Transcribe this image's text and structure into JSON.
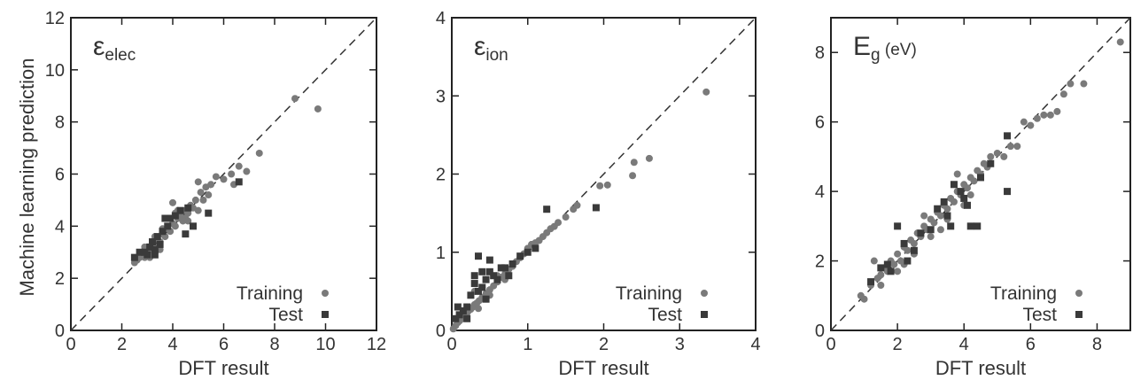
{
  "figure": {
    "ylabel": "Machine learning prediction",
    "colors": {
      "training": "#7a7a7a",
      "test": "#3a3a3a",
      "axis": "#222222"
    }
  },
  "chart_data": [
    {
      "type": "scatter",
      "title_main": "ε",
      "title_sub": "elec",
      "title_unit": "",
      "xlabel": "DFT result",
      "ylabel": "Machine learning prediction",
      "xlim": [
        0,
        12
      ],
      "ylim": [
        0,
        12
      ],
      "xticks": [
        0,
        2,
        4,
        6,
        8,
        10,
        12
      ],
      "yticks": [
        0,
        2,
        4,
        6,
        8,
        10,
        12
      ],
      "legend": {
        "position": "bottom-right",
        "entries": [
          "Training",
          "Test"
        ]
      },
      "series": [
        {
          "name": "Training",
          "marker": "circle",
          "points": [
            [
              2.5,
              2.6
            ],
            [
              2.6,
              2.7
            ],
            [
              2.7,
              2.8
            ],
            [
              2.8,
              2.9
            ],
            [
              2.9,
              2.8
            ],
            [
              3.0,
              3.1
            ],
            [
              3.1,
              3.0
            ],
            [
              3.2,
              3.3
            ],
            [
              3.3,
              3.2
            ],
            [
              3.4,
              3.5
            ],
            [
              3.5,
              3.4
            ],
            [
              3.6,
              3.7
            ],
            [
              3.7,
              3.6
            ],
            [
              3.8,
              3.9
            ],
            [
              3.9,
              3.8
            ],
            [
              4.0,
              4.1
            ],
            [
              4.1,
              4.0
            ],
            [
              4.2,
              4.3
            ],
            [
              4.3,
              4.4
            ],
            [
              4.4,
              4.2
            ],
            [
              4.5,
              4.6
            ],
            [
              4.6,
              4.5
            ],
            [
              4.7,
              4.8
            ],
            [
              4.8,
              4.7
            ],
            [
              4.9,
              5.0
            ],
            [
              5.0,
              4.6
            ],
            [
              5.1,
              5.3
            ],
            [
              5.2,
              5.0
            ],
            [
              5.3,
              5.5
            ],
            [
              5.4,
              5.2
            ],
            [
              4.0,
              4.9
            ],
            [
              4.2,
              4.6
            ],
            [
              4.5,
              4.3
            ],
            [
              5.0,
              5.7
            ],
            [
              5.5,
              5.6
            ],
            [
              5.7,
              5.9
            ],
            [
              6.0,
              5.8
            ],
            [
              6.3,
              6.0
            ],
            [
              6.4,
              5.6
            ],
            [
              6.6,
              6.3
            ],
            [
              6.9,
              6.1
            ],
            [
              7.4,
              6.8
            ],
            [
              8.8,
              8.9
            ],
            [
              9.7,
              8.5
            ],
            [
              3.3,
              3.6
            ],
            [
              3.6,
              3.9
            ],
            [
              3.8,
              4.3
            ],
            [
              4.1,
              4.5
            ],
            [
              4.6,
              4.2
            ],
            [
              2.9,
              3.2
            ],
            [
              3.1,
              2.8
            ],
            [
              3.5,
              3.1
            ]
          ]
        },
        {
          "name": "Test",
          "marker": "square",
          "points": [
            [
              2.5,
              2.8
            ],
            [
              2.7,
              3.0
            ],
            [
              2.9,
              3.0
            ],
            [
              3.0,
              2.9
            ],
            [
              3.1,
              3.2
            ],
            [
              3.2,
              3.4
            ],
            [
              3.3,
              3.1
            ],
            [
              3.4,
              3.6
            ],
            [
              3.5,
              3.3
            ],
            [
              3.6,
              3.8
            ],
            [
              3.8,
              4.0
            ],
            [
              3.9,
              4.3
            ],
            [
              4.1,
              4.4
            ],
            [
              4.3,
              4.6
            ],
            [
              4.6,
              4.7
            ],
            [
              4.8,
              4.0
            ],
            [
              5.4,
              4.5
            ],
            [
              6.6,
              5.7
            ],
            [
              3.3,
              2.9
            ],
            [
              3.7,
              4.3
            ],
            [
              4.5,
              3.7
            ]
          ]
        }
      ]
    },
    {
      "type": "scatter",
      "title_main": "ε",
      "title_sub": "ion",
      "title_unit": "",
      "xlabel": "DFT result",
      "ylabel": "",
      "xlim": [
        0,
        4
      ],
      "ylim": [
        0,
        4
      ],
      "xticks": [
        0,
        1,
        2,
        3,
        4
      ],
      "yticks": [
        0,
        1,
        2,
        3,
        4
      ],
      "legend": {
        "position": "bottom-right",
        "entries": [
          "Training",
          "Test"
        ]
      },
      "series": [
        {
          "name": "Training",
          "marker": "circle",
          "points": [
            [
              0.02,
              0.02
            ],
            [
              0.05,
              0.06
            ],
            [
              0.08,
              0.1
            ],
            [
              0.1,
              0.12
            ],
            [
              0.12,
              0.14
            ],
            [
              0.15,
              0.18
            ],
            [
              0.18,
              0.2
            ],
            [
              0.2,
              0.22
            ],
            [
              0.22,
              0.25
            ],
            [
              0.25,
              0.27
            ],
            [
              0.28,
              0.3
            ],
            [
              0.3,
              0.33
            ],
            [
              0.33,
              0.35
            ],
            [
              0.36,
              0.38
            ],
            [
              0.4,
              0.42
            ],
            [
              0.45,
              0.47
            ],
            [
              0.5,
              0.52
            ],
            [
              0.55,
              0.57
            ],
            [
              0.6,
              0.62
            ],
            [
              0.65,
              0.68
            ],
            [
              0.7,
              0.72
            ],
            [
              0.75,
              0.78
            ],
            [
              0.8,
              0.82
            ],
            [
              0.85,
              0.88
            ],
            [
              0.9,
              0.93
            ],
            [
              0.95,
              0.98
            ],
            [
              1.0,
              1.05
            ],
            [
              1.05,
              1.1
            ],
            [
              1.1,
              1.12
            ],
            [
              1.15,
              1.15
            ],
            [
              1.2,
              1.2
            ],
            [
              1.25,
              1.25
            ],
            [
              1.3,
              1.3
            ],
            [
              1.35,
              1.33
            ],
            [
              1.4,
              1.38
            ],
            [
              1.5,
              1.45
            ],
            [
              1.6,
              1.55
            ],
            [
              1.65,
              1.6
            ],
            [
              1.95,
              1.85
            ],
            [
              2.05,
              1.86
            ],
            [
              2.38,
              1.98
            ],
            [
              2.4,
              2.15
            ],
            [
              2.6,
              2.2
            ],
            [
              3.35,
              3.05
            ],
            [
              0.3,
              0.5
            ],
            [
              0.4,
              0.55
            ],
            [
              0.5,
              0.45
            ],
            [
              0.6,
              0.7
            ],
            [
              0.7,
              0.65
            ],
            [
              0.35,
              0.28
            ]
          ]
        },
        {
          "name": "Test",
          "marker": "square",
          "points": [
            [
              0.05,
              0.15
            ],
            [
              0.08,
              0.3
            ],
            [
              0.1,
              0.2
            ],
            [
              0.15,
              0.25
            ],
            [
              0.2,
              0.3
            ],
            [
              0.25,
              0.45
            ],
            [
              0.3,
              0.6
            ],
            [
              0.3,
              0.7
            ],
            [
              0.35,
              0.5
            ],
            [
              0.35,
              0.95
            ],
            [
              0.4,
              0.75
            ],
            [
              0.4,
              0.55
            ],
            [
              0.45,
              0.65
            ],
            [
              0.5,
              0.75
            ],
            [
              0.5,
              0.9
            ],
            [
              0.55,
              0.7
            ],
            [
              0.6,
              0.65
            ],
            [
              0.65,
              0.8
            ],
            [
              0.7,
              0.8
            ],
            [
              0.75,
              0.7
            ],
            [
              0.8,
              0.85
            ],
            [
              0.9,
              0.95
            ],
            [
              1.0,
              1.0
            ],
            [
              1.1,
              1.05
            ],
            [
              1.25,
              1.55
            ],
            [
              1.9,
              1.57
            ],
            [
              0.2,
              0.15
            ],
            [
              0.45,
              0.4
            ]
          ]
        }
      ]
    },
    {
      "type": "scatter",
      "title_main": "E",
      "title_sub": "g",
      "title_unit": "(eV)",
      "xlabel": "DFT result",
      "ylabel": "",
      "xlim": [
        0,
        9
      ],
      "ylim": [
        0,
        9
      ],
      "xticks": [
        0,
        2,
        4,
        6,
        8
      ],
      "yticks": [
        0,
        2,
        4,
        6,
        8
      ],
      "legend": {
        "position": "bottom-right",
        "entries": [
          "Training",
          "Test"
        ]
      },
      "series": [
        {
          "name": "Training",
          "marker": "circle",
          "points": [
            [
              0.9,
              1.0
            ],
            [
              1.0,
              0.9
            ],
            [
              1.2,
              1.3
            ],
            [
              1.4,
              1.5
            ],
            [
              1.5,
              1.6
            ],
            [
              1.6,
              1.8
            ],
            [
              1.7,
              1.7
            ],
            [
              1.8,
              2.0
            ],
            [
              1.9,
              1.9
            ],
            [
              2.0,
              2.2
            ],
            [
              2.1,
              2.0
            ],
            [
              2.2,
              2.4
            ],
            [
              2.3,
              2.3
            ],
            [
              2.4,
              2.6
            ],
            [
              2.5,
              2.5
            ],
            [
              2.6,
              2.8
            ],
            [
              2.7,
              2.7
            ],
            [
              2.8,
              3.0
            ],
            [
              2.9,
              2.9
            ],
            [
              3.0,
              3.2
            ],
            [
              3.1,
              3.1
            ],
            [
              3.2,
              3.4
            ],
            [
              3.3,
              3.3
            ],
            [
              3.4,
              3.6
            ],
            [
              3.5,
              3.5
            ],
            [
              3.6,
              3.8
            ],
            [
              3.7,
              3.7
            ],
            [
              3.8,
              4.0
            ],
            [
              3.9,
              3.9
            ],
            [
              4.0,
              4.2
            ],
            [
              4.1,
              4.1
            ],
            [
              4.2,
              4.4
            ],
            [
              4.3,
              4.3
            ],
            [
              4.4,
              4.6
            ],
            [
              4.5,
              4.5
            ],
            [
              4.6,
              4.8
            ],
            [
              4.7,
              4.7
            ],
            [
              4.8,
              5.0
            ],
            [
              5.0,
              5.1
            ],
            [
              5.2,
              5.0
            ],
            [
              5.4,
              5.3
            ],
            [
              5.6,
              5.3
            ],
            [
              5.8,
              6.0
            ],
            [
              6.0,
              5.9
            ],
            [
              6.2,
              6.1
            ],
            [
              6.4,
              6.2
            ],
            [
              6.6,
              6.2
            ],
            [
              6.8,
              6.3
            ],
            [
              7.0,
              6.8
            ],
            [
              7.2,
              7.1
            ],
            [
              7.6,
              7.1
            ],
            [
              8.7,
              8.3
            ],
            [
              1.5,
              1.3
            ],
            [
              2.0,
              1.7
            ],
            [
              2.5,
              2.2
            ],
            [
              3.0,
              2.7
            ],
            [
              3.5,
              3.2
            ],
            [
              4.0,
              3.6
            ],
            [
              2.8,
              3.3
            ],
            [
              3.3,
              2.9
            ],
            [
              1.3,
              2.0
            ],
            [
              2.2,
              1.9
            ],
            [
              3.8,
              4.5
            ],
            [
              4.2,
              3.9
            ]
          ]
        },
        {
          "name": "Test",
          "marker": "square",
          "points": [
            [
              1.2,
              1.4
            ],
            [
              1.5,
              1.8
            ],
            [
              1.8,
              1.7
            ],
            [
              2.0,
              3.0
            ],
            [
              2.2,
              2.5
            ],
            [
              2.5,
              2.3
            ],
            [
              2.7,
              2.8
            ],
            [
              3.0,
              2.9
            ],
            [
              3.2,
              3.5
            ],
            [
              3.5,
              3.3
            ],
            [
              3.7,
              4.2
            ],
            [
              3.9,
              4.0
            ],
            [
              4.0,
              3.8
            ],
            [
              4.1,
              3.6
            ],
            [
              4.2,
              3.0
            ],
            [
              4.4,
              3.0
            ],
            [
              4.5,
              4.4
            ],
            [
              4.8,
              4.8
            ],
            [
              5.3,
              5.6
            ],
            [
              5.3,
              4.0
            ],
            [
              3.6,
              3.0
            ],
            [
              2.3,
              2.0
            ],
            [
              3.4,
              3.7
            ],
            [
              1.7,
              1.9
            ]
          ]
        }
      ]
    }
  ]
}
